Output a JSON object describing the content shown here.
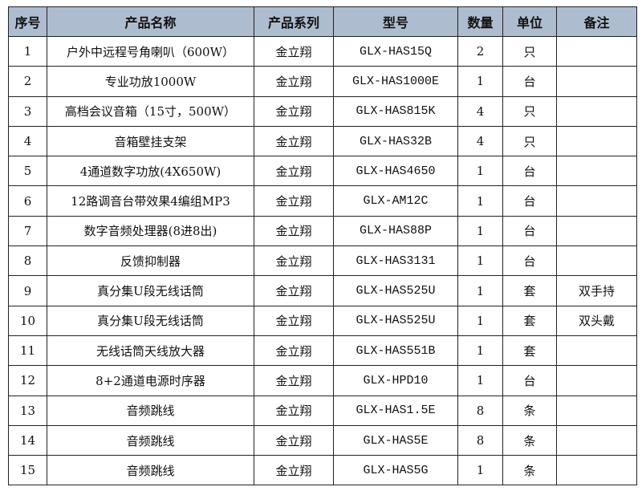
{
  "table": {
    "headers": [
      "序号",
      "产品名称",
      "产品系列",
      "型号",
      "数量",
      "单位",
      "备注"
    ],
    "header_bg": "#aebccf",
    "rows": [
      [
        "1",
        "户外中远程号角喇叭（600W）",
        "金立翔",
        "GLX-HAS15Q",
        "2",
        "只",
        ""
      ],
      [
        "2",
        "专业功放1000W",
        "金立翔",
        "GLX-HAS1000E",
        "1",
        "台",
        ""
      ],
      [
        "3",
        "高档会议音箱（15寸，500W）",
        "金立翔",
        "GLX-HAS815K",
        "4",
        "只",
        ""
      ],
      [
        "4",
        "音箱壁挂支架",
        "金立翔",
        "GLX-HAS32B",
        "4",
        "只",
        ""
      ],
      [
        "5",
        "4通道数字功放(4X650W)",
        "金立翔",
        "GLX-HAS4650",
        "1",
        "台",
        ""
      ],
      [
        "6",
        "12路调音台带效果4编组MP3",
        "金立翔",
        "GLX-AM12C",
        "1",
        "台",
        ""
      ],
      [
        "7",
        "数字音频处理器(8进8出)",
        "金立翔",
        "GLX-HAS88P",
        "1",
        "台",
        ""
      ],
      [
        "8",
        "反馈抑制器",
        "金立翔",
        "GLX-HAS3131",
        "1",
        "台",
        ""
      ],
      [
        "9",
        "真分集U段无线话筒",
        "金立翔",
        "GLX-HAS525U",
        "1",
        "套",
        "双手持"
      ],
      [
        "10",
        "真分集U段无线话筒",
        "金立翔",
        "GLX-HAS525U",
        "1",
        "套",
        "双头戴"
      ],
      [
        "11",
        "无线话筒天线放大器",
        "金立翔",
        "GLX-HAS551B",
        "1",
        "套",
        ""
      ],
      [
        "12",
        "8+2通道电源时序器",
        "金立翔",
        "GLX-HPD10",
        "1",
        "台",
        ""
      ],
      [
        "13",
        "音频跳线",
        "金立翔",
        "GLX-HAS1.5E",
        "8",
        "条",
        ""
      ],
      [
        "14",
        "音频跳线",
        "金立翔",
        "GLX-HAS5E",
        "8",
        "条",
        ""
      ],
      [
        "15",
        "音频跳线",
        "金立翔",
        "GLX-HAS5G",
        "1",
        "条",
        ""
      ]
    ]
  }
}
